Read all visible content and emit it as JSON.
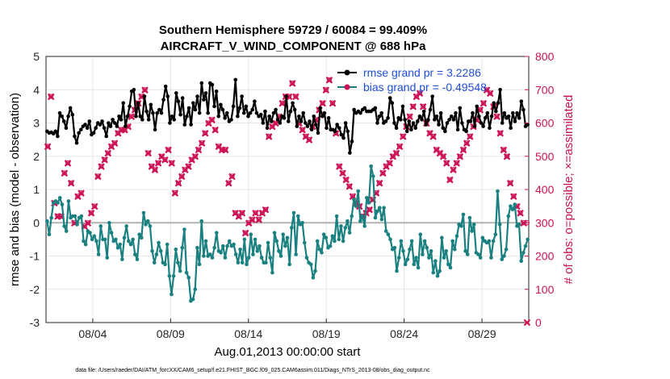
{
  "chart_data": {
    "type": "line",
    "title": "Southern Hemisphere 59729 / 60084 = 99.409%",
    "subtitle": "AIRCRAFT_V_WIND_COMPONENT @ 688 hPa",
    "xlabel": "Aug.01,2013 00:00:00 start",
    "ylabel_left": "rmse and bias (model - observation)",
    "ylabel_right": "# of obs: o=possible; ×=assimilated",
    "footnote": "data file: /Users/raeder/DAI/ATM_forcXX/CAM6_setup/f.e21.FHIST_BGC.f09_025.CAM6assim.011/Diags_NTrS_2013-08/obs_diag_output.nc",
    "xlim": [
      1,
      32
    ],
    "ylim_left": [
      -3,
      5
    ],
    "ylim_right": [
      0,
      800
    ],
    "x_tick_labels": [
      "08/04",
      "08/09",
      "08/14",
      "08/19",
      "08/24",
      "08/29"
    ],
    "x_tick_values": [
      4,
      9,
      14,
      19,
      24,
      29
    ],
    "y_left_ticks": [
      "5",
      "4",
      "3",
      "2",
      "1",
      "0",
      "-1",
      "-2",
      "-3"
    ],
    "y_right_ticks": [
      "800",
      "700",
      "600",
      "500",
      "400",
      "300",
      "200",
      "100",
      "0"
    ],
    "legend": [
      "rmse grand pr = 3.2286",
      "bias grand pr = -0.49548"
    ],
    "colors": {
      "rmse": "#000000",
      "bias": "#1a8080",
      "obs": "#cc1155",
      "zero": "#b3b3b3",
      "grid": "#e6e6e6",
      "legend_text": "#1f4fd8"
    },
    "series": [
      {
        "name": "rmse",
        "axis": "left",
        "values": [
          2.75,
          2.7,
          2.72,
          2.68,
          2.75,
          2.6,
          3.3,
          3.2,
          3.05,
          2.85,
          3.2,
          3.45,
          3.25,
          2.6,
          2.4,
          2.7,
          2.8,
          2.9,
          2.95,
          2.85,
          3.05,
          2.65,
          2.7,
          2.85,
          3.0,
          2.95,
          3.05,
          2.85,
          2.6,
          3.0,
          2.9,
          3.1,
          3.0,
          2.9,
          3.2,
          3.1,
          3.6,
          2.9,
          3.2,
          3.5,
          3.95,
          4.0,
          3.2,
          3.6,
          3.2,
          3.1,
          3.8,
          3.35,
          3.1,
          3.55,
          3.3,
          2.8,
          3.3,
          3.4,
          3.3,
          3.7,
          4.1,
          3.8,
          3.0,
          3.2,
          3.1,
          3.9,
          3.65,
          3.25,
          3.75,
          2.95,
          3.2,
          3.45,
          2.95,
          3.6,
          3.4,
          3.8,
          3.3,
          4.2,
          3.7,
          3.9,
          3.3,
          4.2,
          4.15,
          3.5,
          3.95,
          3.2,
          3.55,
          3.4,
          3.15,
          3.3,
          3.05,
          3.1,
          3.5,
          4.3,
          3.2,
          3.45,
          3.8,
          3.3,
          3.5,
          3.2,
          3.3,
          3.4,
          3.65,
          3.3,
          3.2,
          3.25,
          3.0,
          3.35,
          2.85,
          3.2,
          3.05,
          3.3,
          3.4,
          3.1,
          3.0,
          3.2,
          3.15,
          3.8,
          3.05,
          3.35,
          3.6,
          3.4,
          2.9,
          3.2,
          3.05,
          3.3,
          3.0,
          2.9,
          3.05,
          2.8,
          3.2,
          2.95,
          2.7,
          3.45,
          3.2,
          3.3,
          2.85,
          3.15,
          2.8,
          2.8,
          2.75,
          2.95,
          2.85,
          2.65,
          2.55,
          3.0,
          2.75,
          2.1,
          2.45,
          3.4,
          3.3,
          3.35,
          3.3,
          3.4,
          3.45,
          3.35,
          3.35,
          3.35,
          3.4,
          3.45,
          3.0,
          3.2,
          3.3,
          3.0,
          3.05,
          3.15,
          3.75,
          3.6,
          3.0,
          2.85,
          3.15,
          3.1,
          3.5,
          3.1,
          2.75,
          3.05,
          2.8,
          3.0,
          2.85,
          3.05,
          3.2,
          3.1,
          3.35,
          2.95,
          3.1,
          3.4,
          3.8,
          3.1,
          3.2,
          2.95,
          3.3,
          2.85,
          2.75,
          3.0,
          3.1,
          3.2,
          3.1,
          3.3,
          2.8,
          3.45,
          3.0,
          2.8,
          2.75,
          3.05,
          3.05,
          3.3,
          2.9,
          3.5,
          3.2,
          3.0,
          2.9,
          3.15,
          3.3,
          2.85,
          3.2,
          3.6,
          3.35,
          3.6,
          4.0,
          3.0,
          3.3,
          3.15,
          3.2,
          2.85,
          3.3,
          3.05,
          3.3,
          3.15,
          3.65,
          3.4,
          2.9,
          2.95
        ]
      },
      {
        "name": "bias",
        "axis": "left",
        "values": [
          0.05,
          -0.35,
          0.15,
          0.6,
          0.65,
          0.6,
          0.75,
          0.55,
          -0.1,
          -0.25,
          0.65,
          0.15,
          0.2,
          0.2,
          -0.05,
          0.15,
          0.2,
          -0.55,
          -0.65,
          -0.25,
          -0.3,
          -0.5,
          -0.4,
          -0.55,
          -0.95,
          -0.1,
          -0.5,
          -0.5,
          -1.05,
          0.0,
          -0.3,
          -0.55,
          -0.5,
          -0.75,
          -0.65,
          -1.1,
          -0.45,
          -0.1,
          -0.55,
          -0.65,
          -0.5,
          -0.95,
          -1.1,
          -0.35,
          -0.45,
          0.3,
          -0.05,
          0.05,
          -0.1,
          -0.85,
          -1.2,
          -0.95,
          -0.6,
          -0.85,
          -1.2,
          -1.25,
          -0.65,
          -1.6,
          -2.15,
          -1.6,
          -0.8,
          -1.2,
          -1.45,
          -0.75,
          -0.2,
          -1.5,
          -1.65,
          -2.35,
          -2.3,
          -2.0,
          -0.75,
          -1.25,
          0.05,
          -1.0,
          -0.55,
          -1.0,
          -0.95,
          -1.05,
          -0.75,
          -0.3,
          -0.85,
          -0.9,
          -0.7,
          -1.05,
          -0.7,
          -0.55,
          -0.7,
          -0.65,
          -0.95,
          -1.2,
          -0.8,
          -1.2,
          -0.5,
          -1.25,
          -1.05,
          -0.35,
          -0.95,
          -0.5,
          -0.85,
          -0.7,
          -1.05,
          -1.2,
          -1.2,
          -0.6,
          -1.05,
          -1.5,
          -0.3,
          -0.55,
          -0.85,
          -1.0,
          -0.35,
          -0.7,
          -0.45,
          -1.25,
          -0.15,
          0.3,
          -0.95,
          0.2,
          -0.05,
          0.0,
          -0.6,
          -1.05,
          -1.2,
          -1.25,
          -1.65,
          -1.45,
          -0.55,
          -0.8,
          -0.9,
          -0.35,
          -0.45,
          -0.75,
          -0.7,
          -0.4,
          -0.55,
          0.2,
          -0.5,
          -0.1,
          -0.55,
          -0.15,
          0.05,
          -0.3,
          0.2,
          0.7,
          0.5,
          0.95,
          0.05,
          0.2,
          -0.1,
          0.75,
          0.6,
          1.7,
          1.4,
          0.15,
          0.35,
          0.45,
          0.1,
          0.45,
          -0.25,
          -0.35,
          -0.5,
          -0.8,
          -0.75,
          -1.45,
          -1.05,
          -0.55,
          -0.85,
          -1.25,
          -1.1,
          -0.8,
          -0.55,
          -1.25,
          -1.05,
          -1.35,
          -0.35,
          -0.95,
          -0.55,
          -0.75,
          -1.05,
          -0.85,
          -1.5,
          -1.15,
          -1.6,
          -1.45,
          -0.45,
          -1.05,
          -0.85,
          -1.25,
          -1.35,
          -0.55,
          -0.8,
          -0.4,
          -0.05,
          -0.1,
          0.25,
          -0.85,
          -0.95,
          0.15,
          -0.25,
          -0.05,
          -0.9,
          -0.95,
          -1.05,
          -0.45,
          -0.55,
          -0.6,
          -0.55,
          -1.05,
          -0.55,
          -0.35,
          0.95,
          -0.05,
          -1.1,
          -1.0,
          -0.8,
          0.2,
          0.5,
          0.4,
          0.55,
          -0.1,
          -0.05,
          -1.15,
          -0.9,
          -0.7,
          -0.5
        ]
      },
      {
        "name": "obs_possible",
        "axis": "right",
        "values": [
          530,
          680,
          360,
          320,
          320,
          450,
          480,
          420,
          300,
          380,
          390,
          290,
          300,
          330,
          350,
          440,
          470,
          490,
          510,
          530,
          540,
          570,
          580,
          580,
          590,
          620,
          640,
          660,
          680,
          700,
          510,
          470,
          460,
          480,
          500,
          490,
          520,
          480,
          390,
          420,
          440,
          460,
          470,
          490,
          500,
          520,
          540,
          570,
          600,
          610,
          580,
          530,
          520,
          520,
          420,
          440,
          330,
          320,
          330,
          270,
          300,
          310,
          330,
          310,
          330,
          340,
          560,
          590,
          600,
          620,
          660,
          680,
          680,
          720,
          680,
          600,
          580,
          560,
          550,
          590,
          610,
          640,
          660,
          700,
          730,
          660,
          570,
          470,
          450,
          430,
          410,
          380,
          360,
          350,
          320,
          330,
          340,
          370,
          390,
          420,
          450,
          470,
          480,
          500,
          510,
          530,
          560,
          590,
          620,
          650,
          680,
          690,
          650,
          600,
          570,
          560,
          520,
          510,
          500,
          480,
          430,
          460,
          480,
          500,
          520,
          540,
          560,
          590,
          610,
          640,
          660,
          700,
          690,
          650,
          620,
          570,
          520,
          500,
          420,
          380,
          350,
          330,
          300,
          300
        ]
      },
      {
        "name": "obs_assimilated",
        "axis": "right",
        "values": [
          529,
          679,
          359,
          319,
          319,
          449,
          479,
          419,
          299,
          379,
          389,
          289,
          299,
          329,
          349,
          439,
          469,
          489,
          509,
          529,
          539,
          569,
          579,
          579,
          589,
          619,
          639,
          659,
          679,
          699,
          509,
          469,
          459,
          479,
          499,
          489,
          519,
          479,
          389,
          419,
          439,
          459,
          469,
          489,
          499,
          519,
          539,
          569,
          599,
          609,
          579,
          529,
          519,
          519,
          419,
          439,
          329,
          319,
          329,
          269,
          299,
          309,
          329,
          309,
          329,
          339,
          559,
          589,
          599,
          619,
          659,
          679,
          679,
          719,
          679,
          599,
          579,
          559,
          549,
          589,
          609,
          639,
          659,
          699,
          729,
          659,
          569,
          469,
          449,
          429,
          409,
          379,
          359,
          349,
          319,
          329,
          339,
          369,
          389,
          419,
          449,
          469,
          479,
          499,
          509,
          529,
          559,
          589,
          619,
          649,
          679,
          689,
          649,
          599,
          569,
          559,
          519,
          509,
          499,
          479,
          429,
          459,
          479,
          499,
          519,
          539,
          559,
          589,
          609,
          639,
          659,
          699,
          689,
          649,
          619,
          569,
          519,
          499,
          419,
          379,
          349,
          329,
          299,
          0
        ]
      }
    ]
  }
}
